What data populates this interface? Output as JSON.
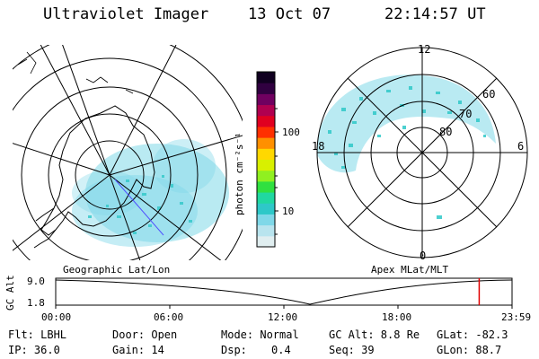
{
  "header": {
    "title": "Ultraviolet Imager",
    "date": "13 Oct 07",
    "time": "22:14:57 UT"
  },
  "left_panel": {
    "caption": "Geographic Lat/Lon"
  },
  "right_panel": {
    "caption": "Apex MLat/MLT",
    "mlt_labels": {
      "top": "12",
      "left": "18",
      "right": "6",
      "bottom": "0"
    },
    "lat_labels": [
      "60",
      "70",
      "80"
    ]
  },
  "colorbar": {
    "unit_label": "photon cm⁻²s⁻¹",
    "ticks": [
      "100",
      "10"
    ],
    "scale": "log",
    "colors": [
      "#e0eef0",
      "#b8e4ee",
      "#7fd8e8",
      "#2ec8c8",
      "#20d8a0",
      "#30e040",
      "#90f020",
      "#d8f000",
      "#ffd800",
      "#ff9000",
      "#ff3000",
      "#e00020",
      "#b00050",
      "#700060",
      "#300040",
      "#100020"
    ]
  },
  "altitude_plot": {
    "ylabel": "GC Alt",
    "ymax_label": "9.0",
    "ymin_label": "1.8",
    "x_ticks": [
      "00:00",
      "06:00",
      "12:00",
      "18:00",
      "23:59"
    ],
    "marker_color": "#e00000",
    "marker_time_fraction": 0.928
  },
  "status": {
    "row1": {
      "flt": "Flt: LBHL",
      "door": "Door: Open",
      "mode": "Mode: Normal",
      "gcalt": "GC Alt: 8.8 Re",
      "glat": "GLat: -82.3"
    },
    "row2": {
      "ip": "IP: 36.0",
      "gain": "Gain: 14",
      "dsp_label": "Dsp:",
      "dsp_value": "0.4",
      "seq": "Seq: 39",
      "glon": "GLon: 88.7"
    }
  },
  "aurora_color": "#7fd8e8"
}
